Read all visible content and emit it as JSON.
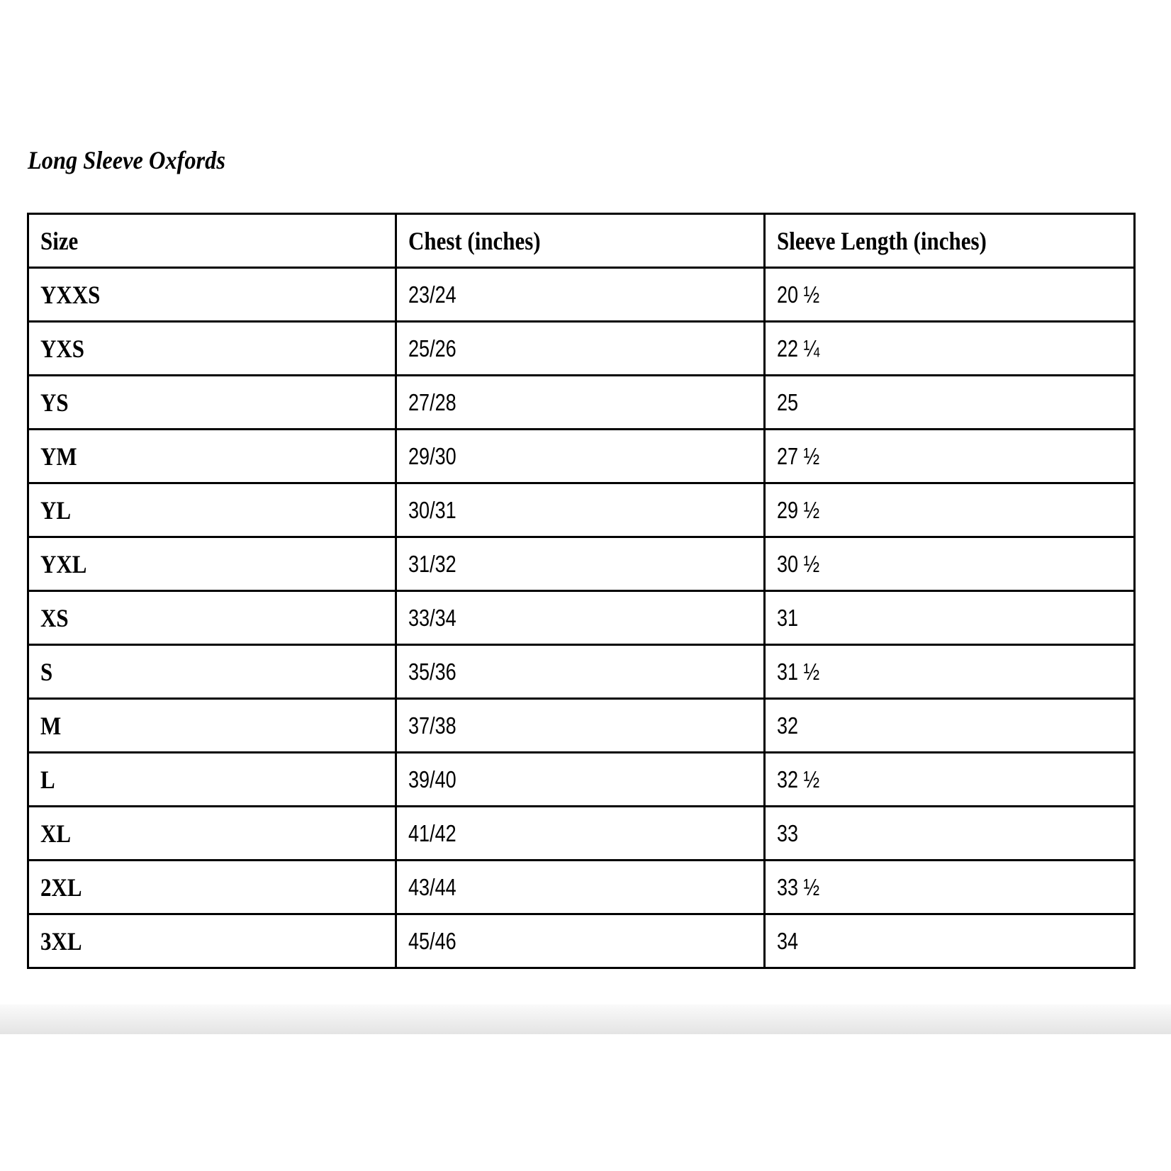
{
  "title": "Long Sleeve Oxfords",
  "table": {
    "headers": [
      "Size",
      "Chest (inches)",
      "Sleeve Length (inches)"
    ],
    "rows": [
      [
        "YXXS",
        "23/24",
        "20 ½"
      ],
      [
        "YXS",
        "25/26",
        "22 ¼"
      ],
      [
        "YS",
        "27/28",
        "25"
      ],
      [
        "YM",
        "29/30",
        "27 ½"
      ],
      [
        "YL",
        "30/31",
        "29 ½"
      ],
      [
        "YXL",
        "31/32",
        "30 ½"
      ],
      [
        "XS",
        "33/34",
        "31"
      ],
      [
        "S",
        "35/36",
        "31 ½"
      ],
      [
        "M",
        "37/38",
        "32"
      ],
      [
        "L",
        "39/40",
        "32 ½"
      ],
      [
        "XL",
        "41/42",
        "33"
      ],
      [
        "2XL",
        "43/44",
        "33 ½"
      ],
      [
        "3XL",
        "45/46",
        "34"
      ]
    ]
  }
}
